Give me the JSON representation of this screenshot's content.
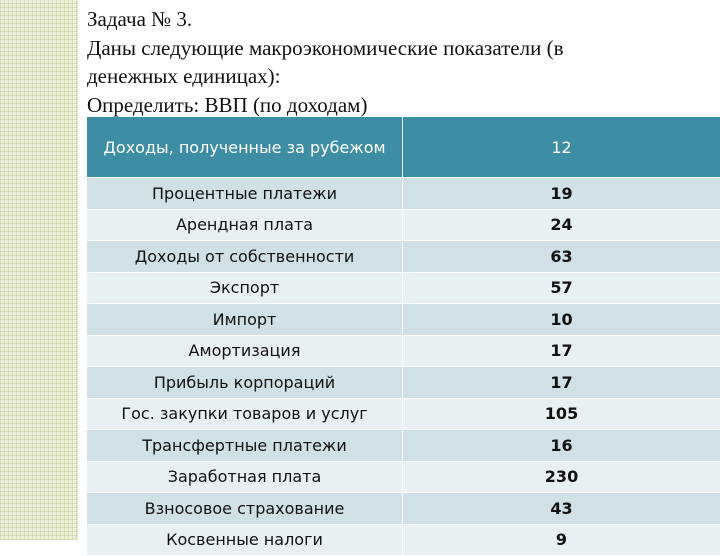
{
  "task": {
    "title": "Задача № 3.",
    "line1": "Даны следующие макроэкономические показатели (в",
    "line2": "денежных  единицах):",
    "line3": "Определить: ВВП (по доходам)"
  },
  "table": {
    "header": {
      "label": "Доходы, полученные за рубежом",
      "value": "12"
    },
    "rows": [
      {
        "label": "Процентные платежи",
        "value": "19"
      },
      {
        "label": "Арендная плата",
        "value": "24"
      },
      {
        "label": "Доходы от собственности",
        "value": "63"
      },
      {
        "label": "Экспорт",
        "value": "57"
      },
      {
        "label": "Импорт",
        "value": "10"
      },
      {
        "label": "Амортизация",
        "value": "17"
      },
      {
        "label": "Прибыль корпораций",
        "value": "17"
      },
      {
        "label": "Гос. закупки товаров и услуг",
        "value": "105"
      },
      {
        "label": "Трансфертные платежи",
        "value": "16"
      },
      {
        "label": "Заработная плата",
        "value": "230"
      },
      {
        "label": "Взносовое страхование",
        "value": "43"
      },
      {
        "label": "Косвенные налоги",
        "value": "9"
      }
    ]
  },
  "colors": {
    "header_bg": "#3d8da4",
    "row_dark": "#cfe0e6",
    "row_light": "#e9f0f3",
    "pattern": "#eef0d9"
  }
}
